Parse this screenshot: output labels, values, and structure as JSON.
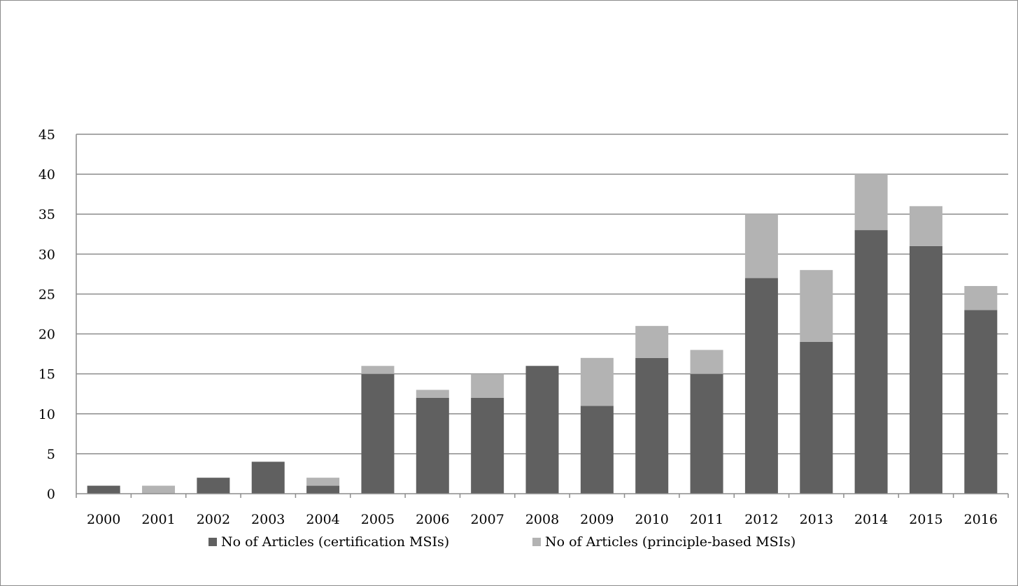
{
  "chart_data": {
    "type": "bar",
    "stacked": true,
    "title": "",
    "xlabel": "",
    "ylabel": "",
    "categories": [
      "2000",
      "2001",
      "2002",
      "2003",
      "2004",
      "2005",
      "2006",
      "2007",
      "2008",
      "2009",
      "2010",
      "2011",
      "2012",
      "2013",
      "2014",
      "2015",
      "2016"
    ],
    "series": [
      {
        "name": "No of Articles (certification MSIs)",
        "color": "#606060",
        "values": [
          1,
          0,
          2,
          4,
          1,
          15,
          12,
          12,
          16,
          11,
          17,
          15,
          27,
          19,
          33,
          31,
          23
        ]
      },
      {
        "name": "No of Articles (principle-based MSIs)",
        "color": "#b3b3b3",
        "values": [
          0,
          1,
          0,
          0,
          1,
          1,
          1,
          3,
          0,
          6,
          4,
          3,
          8,
          9,
          7,
          5,
          3
        ]
      }
    ],
    "ylim": [
      0,
      45
    ],
    "yticks": [
      0,
      5,
      10,
      15,
      20,
      25,
      30,
      35,
      40,
      45
    ],
    "grid": true,
    "legend_position": "bottom"
  }
}
